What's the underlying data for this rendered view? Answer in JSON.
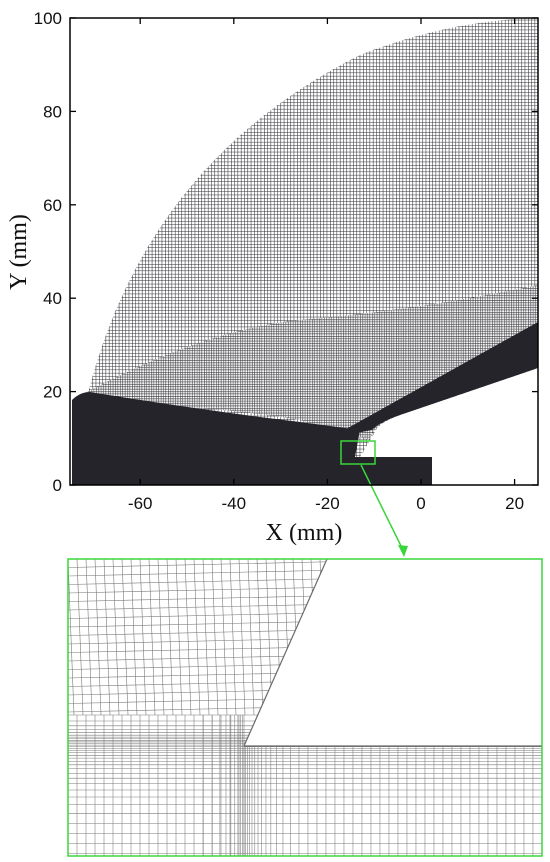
{
  "figure": {
    "x_axis": {
      "label": "X (mm)",
      "range": [
        -75,
        25
      ],
      "ticks": [
        -60,
        -40,
        -20,
        0,
        20
      ],
      "tick_labels": [
        "-60",
        "-40",
        "-20",
        "0",
        "20"
      ]
    },
    "y_axis": {
      "label": "Y (mm)",
      "range": [
        0,
        100
      ],
      "ticks": [
        0,
        20,
        40,
        60,
        80,
        100
      ],
      "tick_labels": [
        "0",
        "20",
        "40",
        "60",
        "80",
        "100"
      ]
    },
    "colors": {
      "mesh": "#2a2a30",
      "mesh_dense": "#24242a",
      "zoom_box": "#3ad53a",
      "axis": "#000000"
    },
    "zoom_region": {
      "x_range": [
        -17,
        -9.5
      ],
      "y_range": [
        4.5,
        9
      ]
    }
  }
}
